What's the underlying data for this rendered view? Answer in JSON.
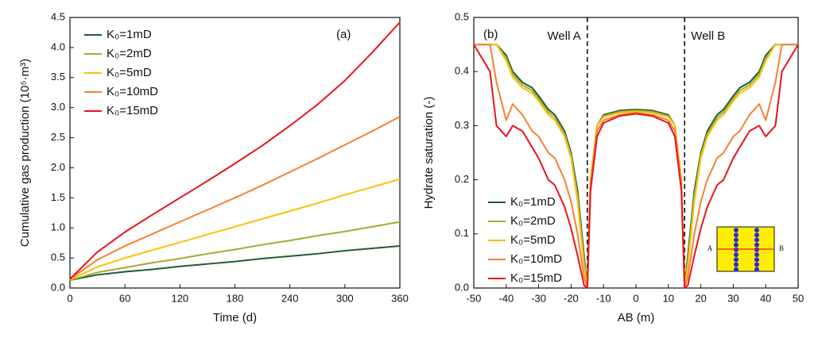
{
  "chart_data": [
    {
      "type": "line",
      "panel_label": "(a)",
      "x_label": "Time (d)",
      "y_label": "Cumulative gas production (10⁵·m³)",
      "x": [
        0,
        30,
        60,
        90,
        120,
        150,
        180,
        210,
        240,
        270,
        300,
        330,
        360
      ],
      "xlim": [
        0,
        360
      ],
      "xticks": [
        0,
        60,
        120,
        180,
        240,
        300,
        360
      ],
      "ylim": [
        0,
        4.5
      ],
      "yticks": [
        {
          "value": 0,
          "label": "0.0"
        },
        0.5,
        {
          "value": 1,
          "label": "1.0"
        },
        1.5,
        {
          "value": 2,
          "label": "2.0"
        },
        2.5,
        {
          "value": 3,
          "label": "3.0"
        },
        3.5,
        {
          "value": 4,
          "label": "4.0"
        },
        4.5
      ],
      "legend": "upper left",
      "series": [
        {
          "name": "K₀=1mD",
          "color": "#1b5e30",
          "values": [
            0.13,
            0.22,
            0.27,
            0.31,
            0.36,
            0.4,
            0.44,
            0.49,
            0.53,
            0.57,
            0.62,
            0.66,
            0.7
          ]
        },
        {
          "name": "K₀=2mD",
          "color": "#a9a834",
          "values": [
            0.13,
            0.26,
            0.34,
            0.42,
            0.49,
            0.57,
            0.64,
            0.72,
            0.79,
            0.87,
            0.94,
            1.02,
            1.1
          ]
        },
        {
          "name": "K₀=5mD",
          "color": "#f7c20a",
          "values": [
            0.14,
            0.35,
            0.5,
            0.63,
            0.76,
            0.89,
            1.02,
            1.15,
            1.28,
            1.41,
            1.55,
            1.68,
            1.81
          ]
        },
        {
          "name": "K₀=10mD",
          "color": "#f58132",
          "values": [
            0.15,
            0.47,
            0.7,
            0.9,
            1.1,
            1.3,
            1.5,
            1.71,
            1.93,
            2.15,
            2.38,
            2.61,
            2.85
          ]
        },
        {
          "name": "K₀=15mD",
          "color": "#e8141e",
          "values": [
            0.15,
            0.6,
            0.93,
            1.22,
            1.5,
            1.78,
            2.07,
            2.37,
            2.7,
            3.05,
            3.45,
            3.92,
            4.42
          ]
        }
      ]
    },
    {
      "type": "line",
      "panel_label": "(b)",
      "x_label": "AB (m)",
      "y_label": "Hydrate saturation (-)",
      "x": [
        -50,
        -45,
        -43,
        -40,
        -38,
        -35,
        -32,
        -30,
        -27,
        -25,
        -22,
        -20,
        -18,
        -16,
        -15,
        -14,
        -12,
        -10,
        -5,
        0,
        5,
        10,
        12,
        14,
        15,
        16,
        18,
        20,
        22,
        25,
        27,
        30,
        32,
        35,
        38,
        40,
        43,
        45,
        50
      ],
      "xlim": [
        -50,
        50
      ],
      "xticks": [
        -50,
        -40,
        -30,
        -20,
        -10,
        0,
        10,
        20,
        30,
        40,
        50
      ],
      "ylim": [
        0,
        0.5
      ],
      "yticks": [
        {
          "value": 0,
          "label": "0.0"
        },
        0.1,
        0.2,
        0.3,
        0.4,
        0.5
      ],
      "legend": "lower left",
      "vlines": [
        {
          "value": -15,
          "label": "Well A"
        },
        {
          "value": 15,
          "label": "Well B"
        }
      ],
      "inset": {
        "labels": [
          "A",
          "B"
        ]
      },
      "series": [
        {
          "name": "K₀=1mD",
          "color": "#1b5e30",
          "values": [
            0.45,
            0.45,
            0.45,
            0.43,
            0.4,
            0.38,
            0.37,
            0.355,
            0.33,
            0.32,
            0.29,
            0.25,
            0.18,
            0.06,
            0.0,
            0.2,
            0.3,
            0.32,
            0.328,
            0.33,
            0.328,
            0.32,
            0.3,
            0.2,
            0.0,
            0.06,
            0.18,
            0.25,
            0.29,
            0.32,
            0.33,
            0.355,
            0.37,
            0.38,
            0.4,
            0.43,
            0.45,
            0.45,
            0.45
          ]
        },
        {
          "name": "K₀=2mD",
          "color": "#a9a834",
          "values": [
            0.45,
            0.45,
            0.45,
            0.425,
            0.395,
            0.375,
            0.365,
            0.35,
            0.325,
            0.315,
            0.285,
            0.245,
            0.17,
            0.05,
            0.0,
            0.2,
            0.3,
            0.318,
            0.326,
            0.328,
            0.326,
            0.318,
            0.3,
            0.2,
            0.0,
            0.05,
            0.17,
            0.245,
            0.285,
            0.315,
            0.325,
            0.35,
            0.365,
            0.375,
            0.395,
            0.425,
            0.45,
            0.45,
            0.45
          ]
        },
        {
          "name": "K₀=5mD",
          "color": "#f7c20a",
          "values": [
            0.45,
            0.45,
            0.45,
            0.42,
            0.39,
            0.37,
            0.36,
            0.345,
            0.32,
            0.31,
            0.28,
            0.24,
            0.16,
            0.04,
            0.0,
            0.2,
            0.3,
            0.316,
            0.324,
            0.326,
            0.324,
            0.316,
            0.3,
            0.2,
            0.0,
            0.04,
            0.16,
            0.24,
            0.28,
            0.31,
            0.32,
            0.345,
            0.36,
            0.37,
            0.39,
            0.42,
            0.45,
            0.45,
            0.45
          ]
        },
        {
          "name": "K₀=10mD",
          "color": "#f58132",
          "values": [
            0.45,
            0.45,
            0.38,
            0.31,
            0.34,
            0.32,
            0.29,
            0.28,
            0.25,
            0.24,
            0.2,
            0.16,
            0.1,
            0.02,
            0.0,
            0.19,
            0.29,
            0.31,
            0.32,
            0.324,
            0.32,
            0.31,
            0.29,
            0.19,
            0.0,
            0.02,
            0.1,
            0.16,
            0.2,
            0.24,
            0.25,
            0.28,
            0.29,
            0.32,
            0.34,
            0.31,
            0.38,
            0.45,
            0.45
          ]
        },
        {
          "name": "K₀=15mD",
          "color": "#e8141e",
          "values": [
            0.45,
            0.4,
            0.3,
            0.28,
            0.3,
            0.29,
            0.26,
            0.24,
            0.2,
            0.19,
            0.15,
            0.11,
            0.06,
            0.005,
            0.0,
            0.18,
            0.28,
            0.305,
            0.318,
            0.322,
            0.318,
            0.305,
            0.28,
            0.18,
            0.0,
            0.005,
            0.06,
            0.11,
            0.15,
            0.19,
            0.2,
            0.24,
            0.26,
            0.29,
            0.3,
            0.28,
            0.3,
            0.4,
            0.45
          ]
        }
      ]
    }
  ]
}
